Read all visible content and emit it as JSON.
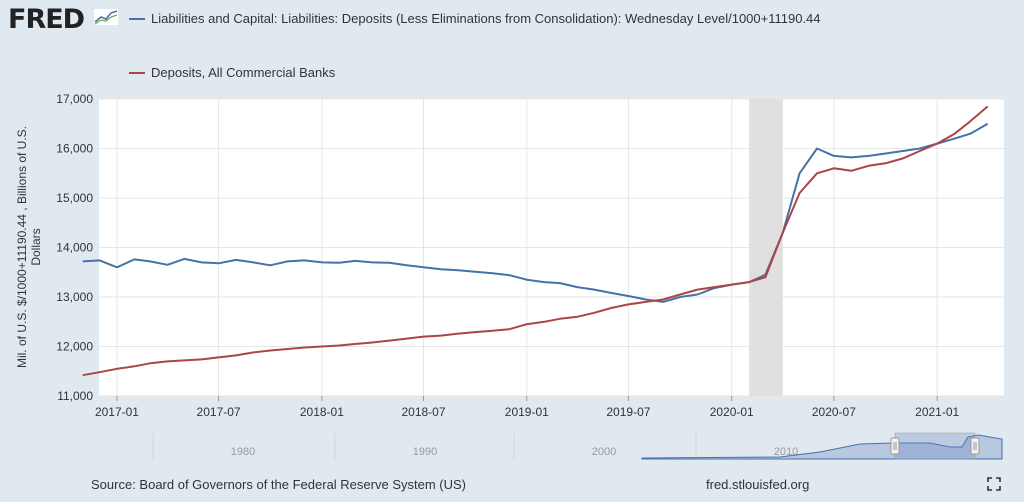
{
  "brand": {
    "name": "FRED",
    "icon": "fred-logo-graph-icon"
  },
  "legend": [
    {
      "label": "Liabilities and Capital: Liabilities: Deposits (Less Eliminations from Consolidation): Wednesday Level/1000+11190.44",
      "color": "#4572a7"
    },
    {
      "label": "Deposits, All Commercial Banks",
      "color": "#aa4643"
    }
  ],
  "footer": {
    "source": "Source: Board of Governors of the Federal Reserve System (US)",
    "url": "fred.stlouisfed.org",
    "fullscreen_icon": "fullscreen-icon"
  },
  "navigator": {
    "tick_labels": [
      "1980",
      "1990",
      "2000",
      "2010"
    ]
  },
  "chart_data": {
    "type": "line",
    "title": "",
    "ylabel": "Mil. of U.S. $/1000+11190.44 , Billions of U.S. Dollars",
    "xlabel": "",
    "ylim": [
      11000,
      17000
    ],
    "yticks": [
      11000,
      12000,
      13000,
      14000,
      15000,
      16000,
      17000
    ],
    "ytick_labels": [
      "11,000",
      "12,000",
      "13,000",
      "14,000",
      "15,000",
      "16,000",
      "17,000"
    ],
    "xlim": [
      "2016-11-30",
      "2021-04-30"
    ],
    "xticks": [
      "2017-01",
      "2017-07",
      "2018-01",
      "2018-07",
      "2019-01",
      "2019-07",
      "2020-01",
      "2020-07",
      "2021-01"
    ],
    "grid": true,
    "recession": {
      "start": "2020-02",
      "end": "2020-04"
    },
    "series": [
      {
        "name": "Liabilities and Capital: Liabilities: Deposits (Less Eliminations from Consolidation): Wednesday Level/1000+11190.44",
        "color": "#4572a7",
        "x": [
          "2016-11",
          "2016-12",
          "2017-01",
          "2017-02",
          "2017-03",
          "2017-04",
          "2017-05",
          "2017-06",
          "2017-07",
          "2017-08",
          "2017-09",
          "2017-10",
          "2017-11",
          "2017-12",
          "2018-01",
          "2018-02",
          "2018-03",
          "2018-04",
          "2018-05",
          "2018-06",
          "2018-07",
          "2018-08",
          "2018-09",
          "2018-10",
          "2018-11",
          "2018-12",
          "2019-01",
          "2019-02",
          "2019-03",
          "2019-04",
          "2019-05",
          "2019-06",
          "2019-07",
          "2019-08",
          "2019-09",
          "2019-10",
          "2019-11",
          "2019-12",
          "2020-01",
          "2020-02",
          "2020-03",
          "2020-04",
          "2020-05",
          "2020-06",
          "2020-07",
          "2020-08",
          "2020-09",
          "2020-10",
          "2020-11",
          "2020-12",
          "2021-01",
          "2021-02",
          "2021-03",
          "2021-04"
        ],
        "y": [
          13720,
          13740,
          13600,
          13760,
          13720,
          13650,
          13770,
          13700,
          13680,
          13750,
          13700,
          13640,
          13720,
          13740,
          13700,
          13690,
          13730,
          13700,
          13690,
          13640,
          13600,
          13560,
          13540,
          13510,
          13480,
          13440,
          13350,
          13300,
          13280,
          13200,
          13150,
          13080,
          13020,
          12950,
          12900,
          13000,
          13050,
          13180,
          13250,
          13300,
          13450,
          14300,
          15500,
          16000,
          15850,
          15820,
          15850,
          15900,
          15950,
          16000,
          16100,
          16200,
          16300,
          16500
        ]
      },
      {
        "name": "Deposits, All Commercial Banks",
        "color": "#aa4643",
        "x": [
          "2016-11",
          "2016-12",
          "2017-01",
          "2017-02",
          "2017-03",
          "2017-04",
          "2017-05",
          "2017-06",
          "2017-07",
          "2017-08",
          "2017-09",
          "2017-10",
          "2017-11",
          "2017-12",
          "2018-01",
          "2018-02",
          "2018-03",
          "2018-04",
          "2018-05",
          "2018-06",
          "2018-07",
          "2018-08",
          "2018-09",
          "2018-10",
          "2018-11",
          "2018-12",
          "2019-01",
          "2019-02",
          "2019-03",
          "2019-04",
          "2019-05",
          "2019-06",
          "2019-07",
          "2019-08",
          "2019-09",
          "2019-10",
          "2019-11",
          "2019-12",
          "2020-01",
          "2020-02",
          "2020-03",
          "2020-04",
          "2020-05",
          "2020-06",
          "2020-07",
          "2020-08",
          "2020-09",
          "2020-10",
          "2020-11",
          "2020-12",
          "2021-01",
          "2021-02",
          "2021-03",
          "2021-04"
        ],
        "y": [
          11420,
          11480,
          11550,
          11600,
          11660,
          11700,
          11720,
          11740,
          11780,
          11820,
          11880,
          11920,
          11950,
          11980,
          12000,
          12020,
          12050,
          12080,
          12120,
          12160,
          12200,
          12220,
          12260,
          12290,
          12320,
          12350,
          12450,
          12500,
          12560,
          12600,
          12680,
          12780,
          12850,
          12900,
          12950,
          13050,
          13150,
          13200,
          13250,
          13300,
          13400,
          14300,
          15100,
          15500,
          15600,
          15550,
          15650,
          15700,
          15800,
          15950,
          16100,
          16300,
          16550,
          16850
        ]
      }
    ]
  }
}
